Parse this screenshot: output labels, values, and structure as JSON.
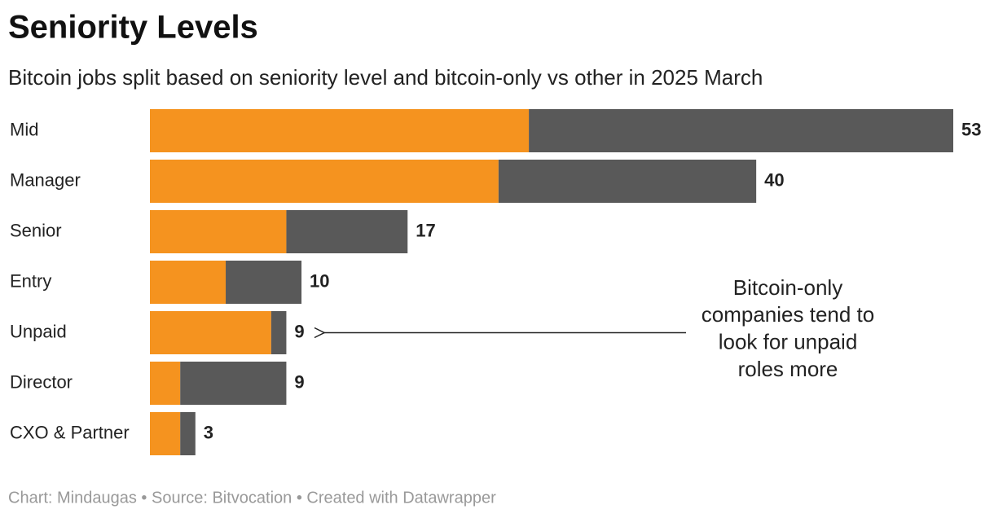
{
  "chart_data": {
    "type": "stacked-bar-horizontal",
    "title": "Seniority Levels",
    "subtitle": "Bitcoin jobs split based on seniority level and bitcoin-only vs other in 2025 March",
    "categories": [
      "Mid",
      "Manager",
      "Senior",
      "Entry",
      "Unpaid",
      "Director",
      "CXO & Partner"
    ],
    "series": [
      {
        "color": "#f5931f",
        "values": [
          25,
          23,
          9,
          5,
          8,
          2,
          2
        ]
      },
      {
        "color": "#595959",
        "values": [
          28,
          17,
          8,
          5,
          1,
          7,
          1
        ]
      }
    ],
    "totals": [
      53,
      40,
      17,
      10,
      9,
      9,
      3
    ],
    "annotation": {
      "lines": [
        "Bitcoin-only",
        "companies tend to",
        "look for unpaid",
        "roles more"
      ],
      "category": "Unpaid"
    },
    "footer": "Chart: Mindaugas • Source: Bitvocation • Created with Datawrapper"
  }
}
